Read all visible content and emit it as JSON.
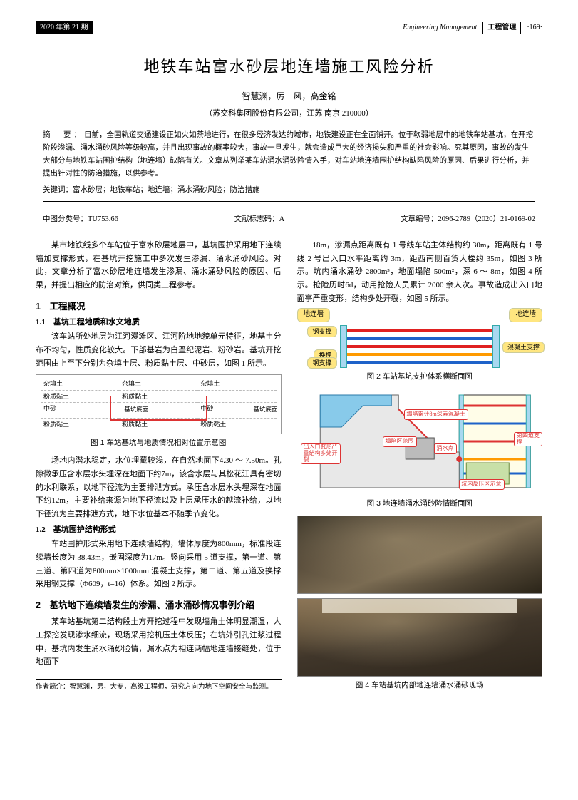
{
  "header": {
    "issue": "2020 年第 21 期",
    "category_en": "Engineering Management",
    "category_cn": "工程管理",
    "page_no": "·169·"
  },
  "title": "地铁车站富水砂层地连墙施工风险分析",
  "authors": "智慧渊，厉　风，高金铭",
  "affiliation": "（苏交科集团股份有限公司，江苏  南京  210000）",
  "abstract_label": "摘　要：",
  "abstract_text": "目前，全国轨道交通建设正如火如荼地进行，在很多经济发达的城市，地铁建设正在全面铺开。位于软弱地层中的地铁车站基坑，在开挖阶段渗漏、涌水涌砂风险等级较高，并且出现事故的概率较大，事故一旦发生，就会造成巨大的经济损失和严重的社会影响。究其原因，事故的发生大部分与地铁车站围护结构（地连墙）缺陷有关。文章从列举某车站涌水涌砂险情入手，对车站地连墙围护结构缺陷风险的原因、后果进行分析，并提出针对性的防治措施，以供参考。",
  "keywords_label": "关键词：",
  "keywords_text": "富水砂层；地铁车站；地连墙；涌水涌砂风险；防治措施",
  "meta": {
    "clc_label": "中图分类号：",
    "clc": "TU753.66",
    "doc_code_label": "文献标志码：",
    "doc_code": "A",
    "article_no_label": "文章编号：",
    "article_no": "2096-2789（2020）21-0169-02"
  },
  "left": {
    "intro": "某市地铁线多个车站位于富水砂层地层中，基坑围护采用地下连续墙加支撑形式，在基坑开挖施工中多次发生渗漏、涌水涌砂风险。对此，文章分析了富水砂层地连墙发生渗漏、涌水涌砂风险的原因、后果，并提出相应的防治对策，供同类工程参考。",
    "s1": "1　工程概况",
    "s1_1": "1.1　基坑工程地质和水文地质",
    "p1": "该车站所处地层为江河漫滩区、江河阶地地貌单元特征，地基土分布不均匀，性质变化较大。下部基岩为白垩纪泥岩、粉砂岩。基坑开挖范围由上至下分别为杂填土层、粉质黏土层、中砂层，如图 1 所示。",
    "fig1_caption": "图 1  车站基坑与地质情况相对位置示意图",
    "p2": "场地内潜水稳定，水位埋藏较浅，在自然地面下4.30 ～ 7.50m。孔隙微承压含水层水头埋深在地面下约7m，该含水层与其松花江具有密切的水利联系，以地下径流为主要排泄方式。承压含水层水头埋深在地面下约12m，主要补给来源为地下径流以及上层承压水的越流补给，以地下径流为主要排泄方式，地下水位基本不随季节变化。",
    "s1_2": "1.2　基坑围护结构形式",
    "p3": "车站围护形式采用地下连续墙结构，墙体厚度为800mm，标准段连续墙长度为 38.43m，嵌固深度为17m。竖向采用 5 道支撑，第一道、第三道、第四道为800mm×1000mm 混凝土支撑，第二道、第五道及换撑采用钢支撑（Φ609，t=16）体系。如图 2 所示。",
    "s2": "2　基坑地下连续墙发生的渗漏、涌水涌砂情况事例介绍",
    "p4": "某车站基坑第二结构段土方开挖过程中发现墙角土体明显潮湿，人工探挖发现渗水细流，现场采用挖机压土体反压；在坑外引孔注浆过程中，基坑内发生涌水涌砂险情，漏水点为相连两幅地连墙接缝处，位于地面下",
    "author_note_label": "作者简介：",
    "author_note": "智慧渊，男，大专，高级工程师，研究方向为地下空间安全与监测。"
  },
  "right": {
    "p1": "18m，渗漏点距离既有 1 号线车站主体结构约 30m，距离既有 1 号线 2 号出入口水平距离约 3m，距西南侧百货大楼约 35m，如图 3 所示。坑内涌水涌砂 2800m³，地面塌陷 500m²，深 6 ～ 8m，如图 4 所示。抢险历时6d，动用抢险人员累计 2000 余人次。事故造成出入口地面亭严重变形，结构多处开裂，如图 5 所示。",
    "fig2": {
      "caption": "图 2  车站基坑支护体系横断面图",
      "wall_left": "地连墙",
      "wall_right": "地连墙",
      "struts": [
        {
          "label": "钢支撑",
          "side": "left",
          "color": "#e02020",
          "type": "concrete"
        },
        {
          "label": "",
          "side": "",
          "color": "#1e62c9",
          "type": "steel"
        },
        {
          "label": "混凝土支撑",
          "side": "right",
          "color": "#e02020",
          "type": "concrete"
        },
        {
          "label": "换撑",
          "side": "left",
          "color": "#ff9a00",
          "type": "steel"
        },
        {
          "label": "钢支撑",
          "side": "left",
          "color": "#1e62c9",
          "type": "steel"
        }
      ]
    },
    "fig3": {
      "caption": "图 3  地连墙涌水涌砂险情断面图",
      "tags": {
        "fill": "塌陷累计8m深素混凝土",
        "zone": "塌陷区范围",
        "entrance": "出入口变形严重结构多处开裂",
        "leak": "涌水点",
        "counter": "坑内反压区示意",
        "strut4": "第四道支撑"
      }
    },
    "fig4_caption": "图 4  车站基坑内部地连墙涌水涌砂现场"
  },
  "fig1_layers": {
    "l1": "杂填土",
    "l2": "粉质黏土",
    "l3": "中砂",
    "l4": "基坑底面",
    "l5": "粉质黏土"
  }
}
